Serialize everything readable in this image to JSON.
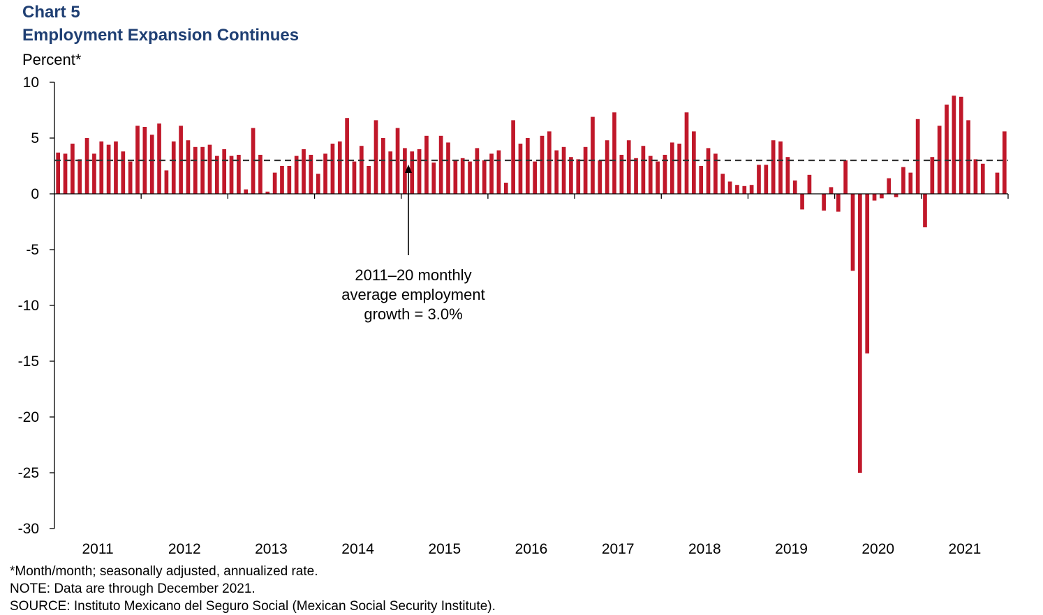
{
  "header": {
    "chart_number": "Chart 5",
    "title": "Employment Expansion Continues",
    "unit": "Percent*"
  },
  "annotation": {
    "lines": [
      "2011–20 monthly",
      "average employment",
      "growth = 3.0%"
    ]
  },
  "notes": [
    "*Month/month; seasonally adjusted, annualized rate.",
    "NOTE: Data are through December 2021.",
    "SOURCE: Instituto Mexicano del Seguro Social (Mexican Social Security Institute)."
  ],
  "colors": {
    "bar": "#c0182a",
    "title": "#1f3f73",
    "reference_line": "#333333"
  },
  "chart_data": {
    "type": "bar",
    "title": "Employment Expansion Continues",
    "ylabel": "Percent*",
    "ylim": [
      -30,
      10
    ],
    "yticks": [
      10,
      5,
      0,
      -5,
      -10,
      -15,
      -20,
      -25,
      -30
    ],
    "x_tick_labels": [
      "2011",
      "2012",
      "2013",
      "2014",
      "2015",
      "2016",
      "2017",
      "2018",
      "2019",
      "2020",
      "2021"
    ],
    "frequency": "monthly",
    "start": "2011-01",
    "end": "2021-12",
    "reference_line": {
      "value": 3.0,
      "style": "dashed",
      "label": "2011–20 monthly average employment growth = 3.0%"
    },
    "values": [
      3.7,
      3.6,
      4.5,
      3.1,
      5.0,
      3.6,
      4.7,
      4.4,
      4.7,
      3.8,
      2.9,
      6.1,
      6.0,
      5.3,
      6.3,
      2.1,
      4.7,
      6.1,
      4.8,
      4.2,
      4.2,
      4.4,
      3.4,
      4.0,
      3.4,
      3.5,
      0.4,
      5.9,
      3.5,
      0.2,
      1.9,
      2.5,
      2.5,
      3.4,
      4.0,
      3.5,
      1.8,
      3.6,
      4.5,
      4.7,
      6.8,
      2.9,
      4.3,
      2.5,
      6.6,
      5.0,
      3.8,
      5.9,
      4.1,
      3.8,
      4.0,
      5.2,
      2.8,
      5.2,
      4.6,
      3.0,
      3.2,
      2.9,
      4.1,
      3.0,
      3.6,
      3.9,
      1.0,
      6.6,
      4.5,
      5.0,
      2.9,
      5.2,
      5.6,
      3.9,
      4.2,
      3.3,
      3.1,
      4.2,
      6.9,
      3.0,
      4.8,
      7.3,
      3.5,
      4.8,
      3.2,
      4.3,
      3.4,
      2.9,
      3.5,
      4.6,
      4.5,
      7.3,
      5.6,
      2.5,
      4.1,
      3.6,
      1.8,
      1.1,
      0.8,
      0.7,
      0.8,
      2.6,
      2.6,
      4.8,
      4.7,
      3.3,
      1.2,
      -1.4,
      1.7,
      0.0,
      -1.5,
      0.6,
      -1.6,
      3.0,
      -6.9,
      -25.0,
      -14.3,
      -0.6,
      -0.4,
      1.4,
      -0.3,
      2.4,
      1.9,
      6.7,
      -3.0,
      3.3,
      6.1,
      8.0,
      8.8,
      8.7,
      6.6,
      3.1,
      2.7,
      0.0,
      1.9,
      5.6
    ]
  }
}
